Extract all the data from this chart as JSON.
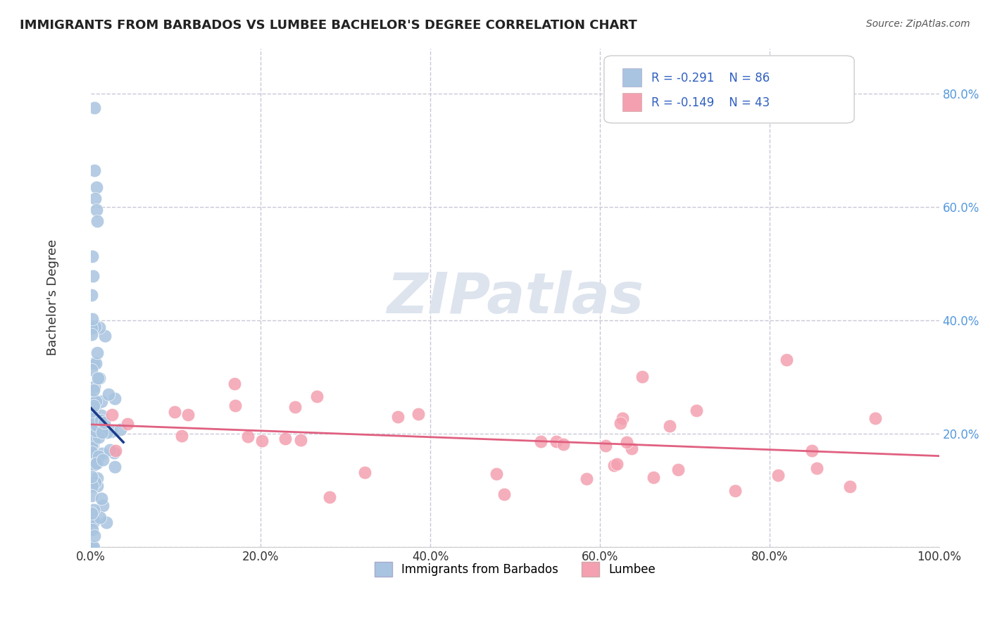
{
  "title": "IMMIGRANTS FROM BARBADOS VS LUMBEE BACHELOR'S DEGREE CORRELATION CHART",
  "source": "Source: ZipAtlas.com",
  "ylabel": "Bachelor's Degree",
  "xlim": [
    0.0,
    1.0
  ],
  "ylim": [
    0.0,
    0.88
  ],
  "xticks": [
    0.0,
    0.2,
    0.4,
    0.6,
    0.8,
    1.0
  ],
  "xticklabels": [
    "0.0%",
    "20.0%",
    "40.0%",
    "60.0%",
    "80.0%",
    "100.0%"
  ],
  "yticks": [
    0.0,
    0.2,
    0.4,
    0.6,
    0.8
  ],
  "ytick_right_labels": [
    "",
    "20.0%",
    "40.0%",
    "60.0%",
    "80.0%"
  ],
  "legend_R1": "R = -0.291",
  "legend_N1": "N = 86",
  "legend_R2": "R = -0.149",
  "legend_N2": "N = 43",
  "blue_color": "#a8c4e0",
  "pink_color": "#f4a0b0",
  "blue_line_color": "#1a3a8a",
  "pink_line_color": "#e06080",
  "legend_text_color": "#3060c0",
  "grid_color": "#c8c8d8",
  "background_color": "#ffffff",
  "watermark_color": "#dde4ee"
}
